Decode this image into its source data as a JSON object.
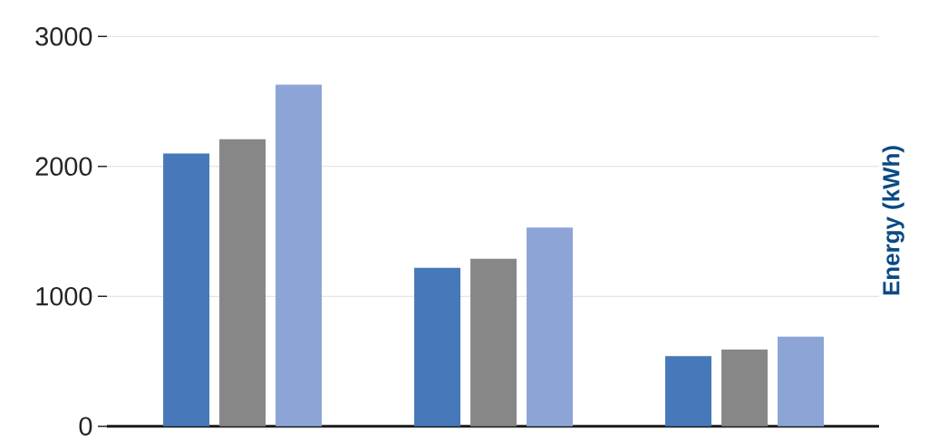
{
  "chart_data": {
    "type": "bar",
    "categories": [
      null,
      null,
      null
    ],
    "series": [
      {
        "color": "#4778b9",
        "values": [
          2100,
          1220,
          540
        ]
      },
      {
        "color": "#878787",
        "values": [
          2210,
          1290,
          590
        ]
      },
      {
        "color": "#8ca5d6",
        "values": [
          2630,
          1530,
          690
        ]
      }
    ],
    "ylabel": "Energy (kWh)",
    "ylim": [
      0,
      3000
    ],
    "yticks": [
      0,
      1000,
      2000,
      3000
    ],
    "grid": "y",
    "tick_labels": "y"
  }
}
